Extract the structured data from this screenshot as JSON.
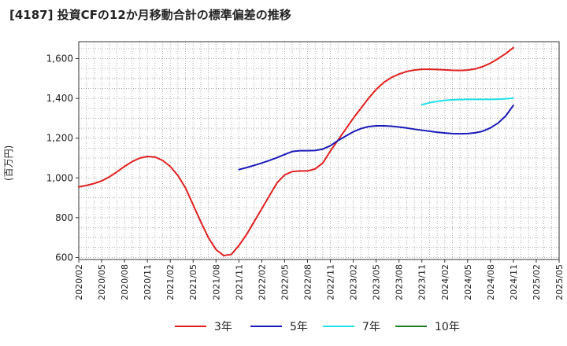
{
  "chart_data": {
    "type": "line",
    "title": "[4187]  投資CFの12か月移動合計の標準偏差の推移",
    "ylabel": "(百万円)",
    "xlabel": "",
    "x_ticks": [
      "2020/02",
      "2020/05",
      "2020/08",
      "2020/11",
      "2021/02",
      "2021/05",
      "2021/08",
      "2021/11",
      "2022/02",
      "2022/05",
      "2022/08",
      "2022/11",
      "2023/02",
      "2023/05",
      "2023/08",
      "2023/11",
      "2024/02",
      "2024/05",
      "2024/08",
      "2024/11",
      "2025/02",
      "2025/05"
    ],
    "y_ticks": [
      600,
      800,
      1000,
      1200,
      1400,
      1600
    ],
    "ylim": [
      590,
      1685
    ],
    "grid": true,
    "legend_position": "bottom",
    "series": [
      {
        "name": "3年",
        "color": "#e02020",
        "points": [
          [
            "2020/02",
            955
          ],
          [
            "2020/03",
            962
          ],
          [
            "2020/04",
            972
          ],
          [
            "2020/05",
            985
          ],
          [
            "2020/06",
            1005
          ],
          [
            "2020/07",
            1030
          ],
          [
            "2020/08",
            1058
          ],
          [
            "2020/09",
            1082
          ],
          [
            "2020/10",
            1100
          ],
          [
            "2020/11",
            1108
          ],
          [
            "2020/12",
            1105
          ],
          [
            "2021/01",
            1088
          ],
          [
            "2021/02",
            1058
          ],
          [
            "2021/03",
            1012
          ],
          [
            "2021/04",
            950
          ],
          [
            "2021/05",
            865
          ],
          [
            "2021/06",
            780
          ],
          [
            "2021/07",
            700
          ],
          [
            "2021/08",
            640
          ],
          [
            "2021/09",
            610
          ],
          [
            "2021/10",
            615
          ],
          [
            "2021/11",
            660
          ],
          [
            "2021/12",
            715
          ],
          [
            "2022/01",
            780
          ],
          [
            "2022/02",
            845
          ],
          [
            "2022/03",
            910
          ],
          [
            "2022/04",
            975
          ],
          [
            "2022/05",
            1015
          ],
          [
            "2022/06",
            1032
          ],
          [
            "2022/07",
            1035
          ],
          [
            "2022/08",
            1035
          ],
          [
            "2022/09",
            1045
          ],
          [
            "2022/10",
            1075
          ],
          [
            "2022/11",
            1135
          ],
          [
            "2022/12",
            1190
          ],
          [
            "2023/01",
            1245
          ],
          [
            "2023/02",
            1300
          ],
          [
            "2023/03",
            1350
          ],
          [
            "2023/04",
            1400
          ],
          [
            "2023/05",
            1445
          ],
          [
            "2023/06",
            1480
          ],
          [
            "2023/07",
            1505
          ],
          [
            "2023/08",
            1522
          ],
          [
            "2023/09",
            1535
          ],
          [
            "2023/10",
            1542
          ],
          [
            "2023/11",
            1546
          ],
          [
            "2023/12",
            1546
          ],
          [
            "2024/01",
            1545
          ],
          [
            "2024/02",
            1543
          ],
          [
            "2024/03",
            1541
          ],
          [
            "2024/04",
            1540
          ],
          [
            "2024/05",
            1542
          ],
          [
            "2024/06",
            1548
          ],
          [
            "2024/07",
            1560
          ],
          [
            "2024/08",
            1577
          ],
          [
            "2024/09",
            1600
          ],
          [
            "2024/10",
            1625
          ],
          [
            "2024/11",
            1655
          ]
        ]
      },
      {
        "name": "5年",
        "color": "#1a1ab8",
        "points": [
          [
            "2021/11",
            1042
          ],
          [
            "2021/12",
            1052
          ],
          [
            "2022/01",
            1063
          ],
          [
            "2022/02",
            1075
          ],
          [
            "2022/03",
            1088
          ],
          [
            "2022/04",
            1102
          ],
          [
            "2022/05",
            1118
          ],
          [
            "2022/06",
            1133
          ],
          [
            "2022/07",
            1137
          ],
          [
            "2022/08",
            1137
          ],
          [
            "2022/09",
            1138
          ],
          [
            "2022/10",
            1145
          ],
          [
            "2022/11",
            1162
          ],
          [
            "2022/12",
            1188
          ],
          [
            "2023/01",
            1210
          ],
          [
            "2023/02",
            1232
          ],
          [
            "2023/03",
            1248
          ],
          [
            "2023/04",
            1258
          ],
          [
            "2023/05",
            1262
          ],
          [
            "2023/06",
            1262
          ],
          [
            "2023/07",
            1260
          ],
          [
            "2023/08",
            1256
          ],
          [
            "2023/09",
            1251
          ],
          [
            "2023/10",
            1245
          ],
          [
            "2023/11",
            1240
          ],
          [
            "2023/12",
            1235
          ],
          [
            "2024/01",
            1230
          ],
          [
            "2024/02",
            1226
          ],
          [
            "2024/03",
            1223
          ],
          [
            "2024/04",
            1222
          ],
          [
            "2024/05",
            1223
          ],
          [
            "2024/06",
            1227
          ],
          [
            "2024/07",
            1235
          ],
          [
            "2024/08",
            1252
          ],
          [
            "2024/09",
            1276
          ],
          [
            "2024/10",
            1312
          ],
          [
            "2024/11",
            1365
          ]
        ]
      },
      {
        "name": "7年",
        "color": "#20e0e8",
        "points": [
          [
            "2023/11",
            1368
          ],
          [
            "2023/12",
            1378
          ],
          [
            "2024/01",
            1385
          ],
          [
            "2024/02",
            1390
          ],
          [
            "2024/03",
            1393
          ],
          [
            "2024/04",
            1394
          ],
          [
            "2024/05",
            1395
          ],
          [
            "2024/06",
            1395
          ],
          [
            "2024/07",
            1395
          ],
          [
            "2024/08",
            1395
          ],
          [
            "2024/09",
            1396
          ],
          [
            "2024/10",
            1398
          ],
          [
            "2024/11",
            1401
          ]
        ]
      },
      {
        "name": "10年",
        "color": "#208020",
        "points": []
      }
    ]
  }
}
